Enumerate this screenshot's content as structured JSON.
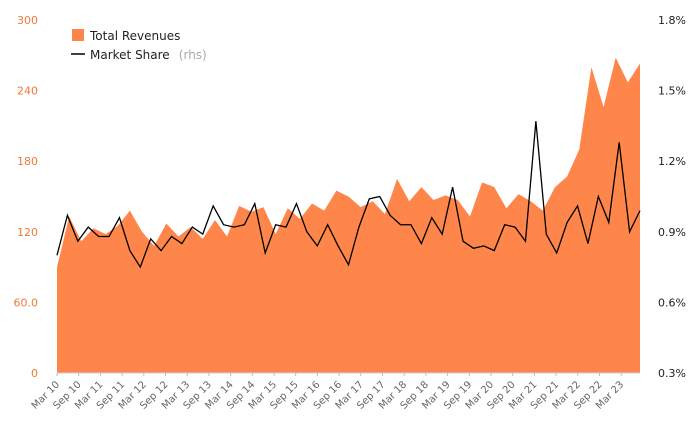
{
  "chart_data": {
    "type": "area+line",
    "title": "",
    "legend_position": "top-left",
    "grid": false,
    "colors": {
      "area": "#ff864b",
      "line": "#000000",
      "left_ticks": "#f07a3a",
      "right_ticks": "#222222"
    },
    "left_axis": {
      "min": 0,
      "max": 300,
      "ticks": [
        0,
        60,
        120,
        180,
        240,
        300
      ],
      "tick_labels": [
        "0",
        "60.0",
        "120",
        "180",
        "240",
        "300"
      ]
    },
    "right_axis": {
      "min": 0.3,
      "max": 1.8,
      "ticks": [
        0.3,
        0.6,
        0.9,
        1.2,
        1.5,
        1.8
      ],
      "tick_labels": [
        "0.3%",
        "0.6%",
        "0.9%",
        "1.2%",
        "1.5%",
        "1.8%"
      ]
    },
    "x_tick_labels": [
      "Mar 10",
      "Sep 10",
      "Mar 11",
      "Sep 11",
      "Mar 12",
      "Sep 12",
      "Mar 13",
      "Sep 13",
      "Mar 14",
      "Sep 14",
      "Mar 15",
      "Sep 15",
      "Mar 16",
      "Sep 16",
      "Mar 17",
      "Sep 17",
      "Mar 18",
      "Sep 18",
      "Mar 19",
      "Sep 19",
      "Mar 20",
      "Sep 20",
      "Mar 21",
      "Sep 21",
      "Mar 22",
      "Sep 22",
      "Mar 23"
    ],
    "series": [
      {
        "name": "Total Revenues",
        "axis": "left",
        "kind": "area",
        "values": [
          90,
          133,
          112,
          123,
          118,
          125,
          138,
          120,
          108,
          127,
          116,
          124,
          114,
          130,
          116,
          142,
          137,
          141,
          118,
          140,
          131,
          144,
          138,
          155,
          150,
          141,
          146,
          135,
          165,
          146,
          158,
          147,
          151,
          147,
          133,
          162,
          158,
          140,
          152,
          146,
          138,
          158,
          167,
          190,
          260,
          226,
          268,
          247,
          263
        ]
      },
      {
        "name": "Market Share",
        "name_suffix": "(rhs)",
        "axis": "right",
        "kind": "line",
        "values": [
          0.8,
          0.97,
          0.86,
          0.92,
          0.88,
          0.88,
          0.96,
          0.82,
          0.75,
          0.87,
          0.82,
          0.88,
          0.85,
          0.92,
          0.89,
          1.01,
          0.93,
          0.92,
          0.93,
          1.02,
          0.81,
          0.93,
          0.92,
          1.02,
          0.9,
          0.84,
          0.93,
          0.84,
          0.76,
          0.92,
          1.04,
          1.05,
          0.97,
          0.93,
          0.93,
          0.85,
          0.96,
          0.89,
          1.09,
          0.86,
          0.83,
          0.84,
          0.82,
          0.93,
          0.92,
          0.86,
          1.37,
          0.89,
          0.81,
          0.94,
          1.01,
          0.85,
          1.05,
          0.94,
          1.28,
          0.9,
          0.99
        ]
      }
    ]
  }
}
